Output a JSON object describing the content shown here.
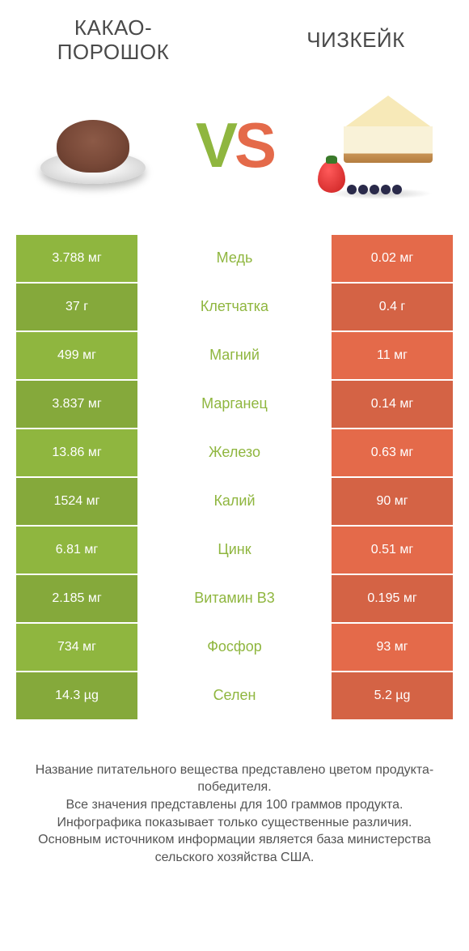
{
  "header": {
    "left_title": "КАКАО-ПОРОШОК",
    "right_title": "ЧИЗКЕЙК"
  },
  "vs": {
    "v": "V",
    "s": "S"
  },
  "colors": {
    "left_bg": "#8fb63f",
    "right_bg": "#e46a4a",
    "mid_text": "#8fb63f",
    "cell_text": "#ffffff",
    "row_alt_darken": 0.07
  },
  "table": {
    "type": "comparison-table",
    "rows": [
      {
        "left": "3.788 мг",
        "label": "Медь",
        "right": "0.02 мг"
      },
      {
        "left": "37 г",
        "label": "Клетчатка",
        "right": "0.4 г"
      },
      {
        "left": "499 мг",
        "label": "Магний",
        "right": "11 мг"
      },
      {
        "left": "3.837 мг",
        "label": "Марганец",
        "right": "0.14 мг"
      },
      {
        "left": "13.86 мг",
        "label": "Железо",
        "right": "0.63 мг"
      },
      {
        "left": "1524 мг",
        "label": "Калий",
        "right": "90 мг"
      },
      {
        "left": "6.81 мг",
        "label": "Цинк",
        "right": "0.51 мг"
      },
      {
        "left": "2.185 мг",
        "label": "Витамин B3",
        "right": "0.195 мг"
      },
      {
        "left": "734 мг",
        "label": "Фосфор",
        "right": "93 мг"
      },
      {
        "left": "14.3 µg",
        "label": "Селен",
        "right": "5.2 µg"
      }
    ]
  },
  "footer": {
    "line1": "Название питательного вещества представлено цветом продукта-победителя.",
    "line2": "Все значения представлены для 100 граммов продукта.",
    "line3": "Инфографика показывает только существенные различия.",
    "line4": "Основным источником информации является база министерства сельского хозяйства США."
  }
}
